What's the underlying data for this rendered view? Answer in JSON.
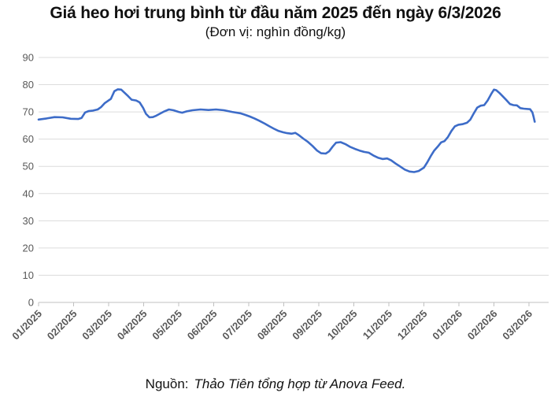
{
  "title": "Giá heo hơi trung bình từ đầu năm 2025 đến ngày 6/3/2026",
  "subtitle": "(Đơn vị: nghìn đồng/kg)",
  "source": {
    "label": "Nguồn:",
    "text": "Thảo Tiên tổng hợp từ Anova Feed."
  },
  "colors": {
    "line": "#3d6cc8",
    "grid": "#dcdcdc",
    "axis": "#c0c0c0",
    "tick_label": "#595959",
    "title": "#111111"
  },
  "chart_data": {
    "type": "line",
    "title": "Giá heo hơi trung bình từ đầu năm 2025 đến ngày 6/3/2026",
    "unit": "nghìn đồng/kg",
    "xlabel": "",
    "ylabel": "",
    "ylim": [
      0,
      90
    ],
    "y_ticks": [
      0,
      10,
      20,
      30,
      40,
      50,
      60,
      70,
      80,
      90
    ],
    "x_tick_labels": [
      "01/2025",
      "02/2025",
      "03/2025",
      "04/2025",
      "05/2025",
      "06/2025",
      "07/2025",
      "08/2025",
      "09/2025",
      "10/2025",
      "11/2025",
      "12/2025",
      "01/2026",
      "02/2026",
      "03/2026"
    ],
    "grid": "horizontal",
    "legend": "none",
    "series": [
      {
        "name": "Giá heo hơi trung bình (nghìn đồng/kg)",
        "points": [
          [
            "01/01/2025",
            67.2
          ],
          [
            "08/01/2025",
            67.6
          ],
          [
            "15/01/2025",
            68.1
          ],
          [
            "22/01/2025",
            68.0
          ],
          [
            "29/01/2025",
            67.5
          ],
          [
            "05/02/2025",
            67.4
          ],
          [
            "08/02/2025",
            67.8
          ],
          [
            "11/02/2025",
            69.8
          ],
          [
            "14/02/2025",
            70.3
          ],
          [
            "18/02/2025",
            70.5
          ],
          [
            "22/02/2025",
            70.9
          ],
          [
            "25/02/2025",
            71.8
          ],
          [
            "28/02/2025",
            73.2
          ],
          [
            "03/03/2025",
            74.8
          ],
          [
            "06/03/2025",
            77.6
          ],
          [
            "09/03/2025",
            78.3
          ],
          [
            "12/03/2025",
            78.2
          ],
          [
            "15/03/2025",
            77.0
          ],
          [
            "18/03/2025",
            75.8
          ],
          [
            "21/03/2025",
            74.5
          ],
          [
            "25/03/2025",
            74.2
          ],
          [
            "28/03/2025",
            73.5
          ],
          [
            "31/03/2025",
            71.5
          ],
          [
            "03/04/2025",
            69.3
          ],
          [
            "06/04/2025",
            68.0
          ],
          [
            "09/04/2025",
            68.1
          ],
          [
            "12/04/2025",
            68.6
          ],
          [
            "15/04/2025",
            69.3
          ],
          [
            "19/04/2025",
            70.2
          ],
          [
            "23/04/2025",
            70.9
          ],
          [
            "27/04/2025",
            70.6
          ],
          [
            "01/05/2025",
            70.0
          ],
          [
            "04/05/2025",
            69.7
          ],
          [
            "08/05/2025",
            70.2
          ],
          [
            "13/05/2025",
            70.6
          ],
          [
            "20/05/2025",
            70.9
          ],
          [
            "27/05/2025",
            70.7
          ],
          [
            "03/06/2025",
            70.9
          ],
          [
            "10/06/2025",
            70.6
          ],
          [
            "17/06/2025",
            70.0
          ],
          [
            "24/06/2025",
            69.5
          ],
          [
            "28/06/2025",
            69.0
          ],
          [
            "02/07/2025",
            68.3
          ],
          [
            "06/07/2025",
            67.6
          ],
          [
            "10/07/2025",
            66.8
          ],
          [
            "15/07/2025",
            65.7
          ],
          [
            "19/07/2025",
            64.7
          ],
          [
            "23/07/2025",
            63.8
          ],
          [
            "27/07/2025",
            63.0
          ],
          [
            "31/07/2025",
            62.5
          ],
          [
            "04/08/2025",
            62.2
          ],
          [
            "08/08/2025",
            62.0
          ],
          [
            "11/08/2025",
            62.3
          ],
          [
            "14/08/2025",
            61.5
          ],
          [
            "18/08/2025",
            60.2
          ],
          [
            "22/08/2025",
            59.0
          ],
          [
            "26/08/2025",
            57.5
          ],
          [
            "30/08/2025",
            55.8
          ],
          [
            "03/09/2025",
            54.8
          ],
          [
            "07/09/2025",
            54.7
          ],
          [
            "10/09/2025",
            55.5
          ],
          [
            "13/09/2025",
            57.2
          ],
          [
            "16/09/2025",
            58.7
          ],
          [
            "20/09/2025",
            58.9
          ],
          [
            "24/09/2025",
            58.2
          ],
          [
            "28/09/2025",
            57.2
          ],
          [
            "02/10/2025",
            56.4
          ],
          [
            "06/10/2025",
            55.8
          ],
          [
            "10/10/2025",
            55.3
          ],
          [
            "14/10/2025",
            55.0
          ],
          [
            "18/10/2025",
            54.0
          ],
          [
            "22/10/2025",
            53.2
          ],
          [
            "26/10/2025",
            52.7
          ],
          [
            "30/10/2025",
            52.9
          ],
          [
            "03/11/2025",
            52.2
          ],
          [
            "07/11/2025",
            51.0
          ],
          [
            "11/11/2025",
            49.9
          ],
          [
            "15/11/2025",
            48.8
          ],
          [
            "19/11/2025",
            48.1
          ],
          [
            "23/11/2025",
            47.9
          ],
          [
            "27/11/2025",
            48.3
          ],
          [
            "01/12/2025",
            49.5
          ],
          [
            "04/12/2025",
            51.5
          ],
          [
            "07/12/2025",
            53.8
          ],
          [
            "10/12/2025",
            55.8
          ],
          [
            "13/12/2025",
            57.2
          ],
          [
            "16/12/2025",
            58.8
          ],
          [
            "19/12/2025",
            59.3
          ],
          [
            "22/12/2025",
            60.8
          ],
          [
            "25/12/2025",
            63.0
          ],
          [
            "28/12/2025",
            64.7
          ],
          [
            "31/12/2025",
            65.3
          ],
          [
            "04/01/2026",
            65.5
          ],
          [
            "08/01/2026",
            66.0
          ],
          [
            "11/01/2026",
            67.2
          ],
          [
            "14/01/2026",
            69.5
          ],
          [
            "17/01/2026",
            71.6
          ],
          [
            "20/01/2026",
            72.3
          ],
          [
            "23/01/2026",
            72.5
          ],
          [
            "26/01/2026",
            74.2
          ],
          [
            "29/01/2026",
            76.5
          ],
          [
            "01/02/2026",
            78.2
          ],
          [
            "03/02/2026",
            78.0
          ],
          [
            "06/02/2026",
            76.9
          ],
          [
            "09/02/2026",
            75.6
          ],
          [
            "12/02/2026",
            74.3
          ],
          [
            "15/02/2026",
            72.9
          ],
          [
            "18/02/2026",
            72.5
          ],
          [
            "21/02/2026",
            72.4
          ],
          [
            "24/02/2026",
            71.4
          ],
          [
            "27/02/2026",
            71.2
          ],
          [
            "02/03/2026",
            71.0
          ],
          [
            "04/03/2026",
            69.8
          ],
          [
            "05/03/2026",
            68.3
          ],
          [
            "06/03/2026",
            66.4
          ]
        ]
      }
    ]
  }
}
